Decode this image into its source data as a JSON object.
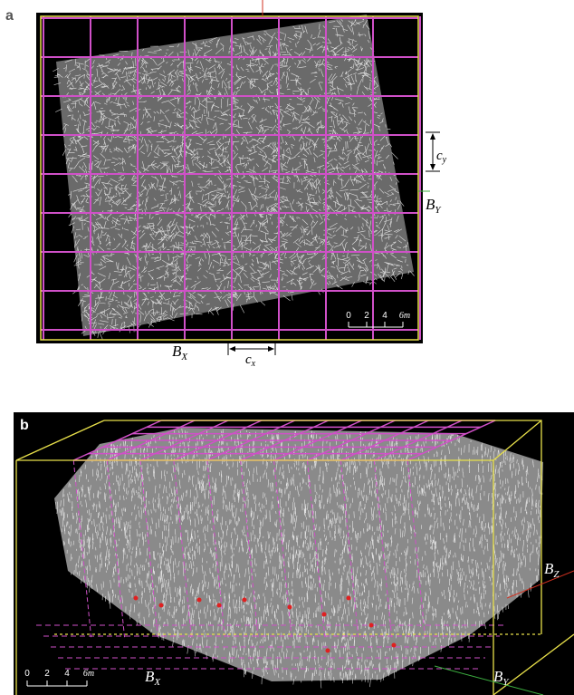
{
  "panel_a": {
    "label": "a",
    "c_y": {
      "main": "c",
      "sub": "y"
    },
    "b_y": {
      "main": "B",
      "sub": "Y"
    },
    "b_x": {
      "main": "B",
      "sub": "X"
    },
    "c_x": {
      "main": "c",
      "sub": "x"
    },
    "scale": [
      "0",
      "2",
      "4",
      "6m"
    ]
  },
  "panel_b": {
    "label": "b",
    "b_z": {
      "main": "B",
      "sub": "Z"
    },
    "b_x": {
      "main": "B",
      "sub": "X"
    },
    "b_y": {
      "main": "B",
      "sub": "Y"
    },
    "scale": [
      "0",
      "2",
      "4",
      "6m"
    ]
  }
}
